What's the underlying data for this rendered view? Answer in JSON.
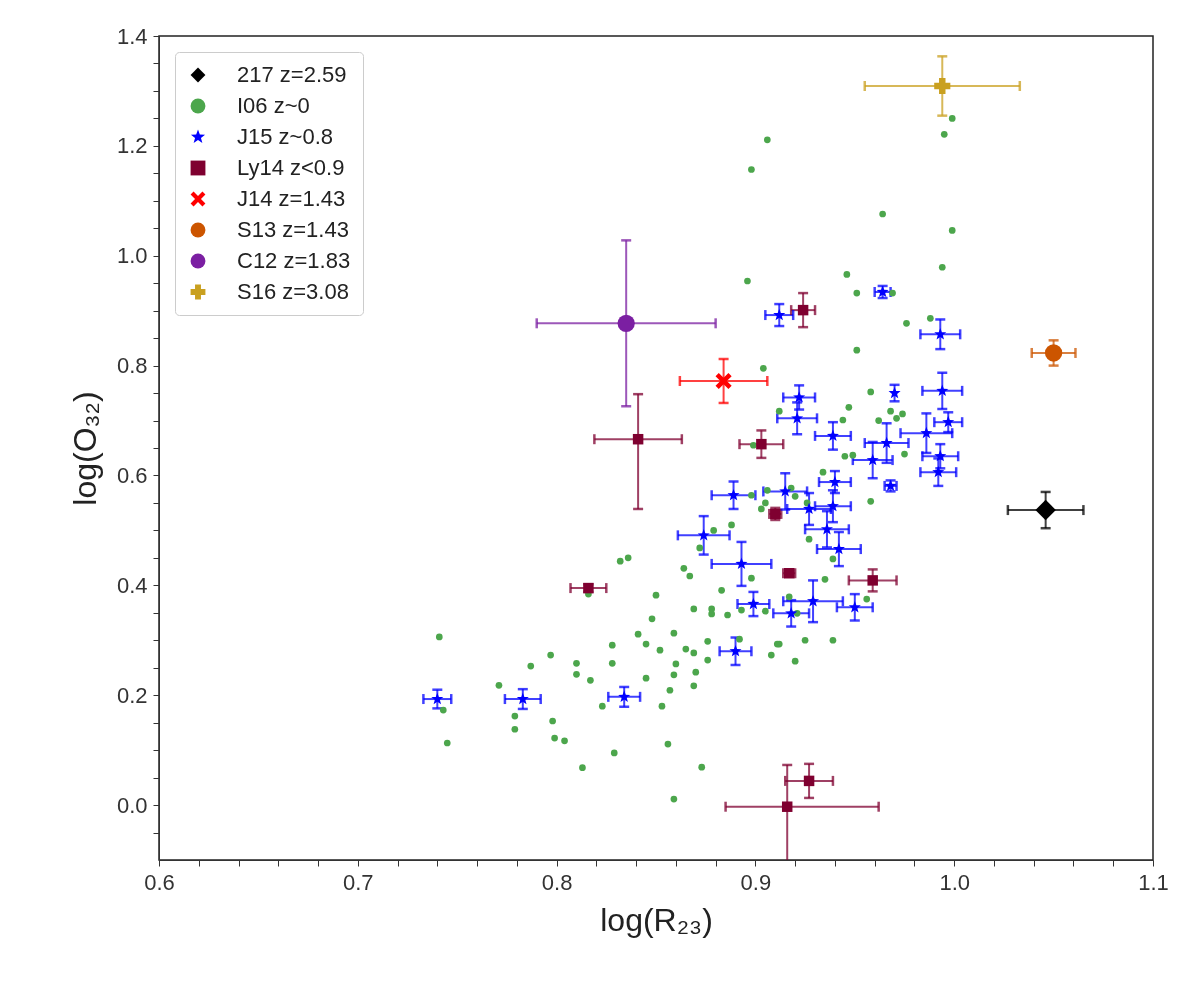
{
  "chart_data": {
    "type": "scatter",
    "xlabel": "log(R₂₃)",
    "ylabel": "log(O₃₂)",
    "xlim": [
      0.6,
      1.1
    ],
    "ylim": [
      -0.1,
      1.4
    ],
    "xticks": [
      0.6,
      {
        "value": 0.62,
        "label": null
      },
      {
        "value": 0.64,
        "label": null
      },
      {
        "value": 0.66,
        "label": null
      },
      {
        "value": 0.68,
        "label": null
      },
      0.7,
      {
        "value": 0.72,
        "label": null
      },
      {
        "value": 0.74,
        "label": null
      },
      {
        "value": 0.76,
        "label": null
      },
      {
        "value": 0.78,
        "label": null
      },
      0.8,
      {
        "value": 0.82,
        "label": null
      },
      {
        "value": 0.84,
        "label": null
      },
      {
        "value": 0.86,
        "label": null
      },
      {
        "value": 0.88,
        "label": null
      },
      0.9,
      {
        "value": 0.92,
        "label": null
      },
      {
        "value": 0.94,
        "label": null
      },
      {
        "value": 0.96,
        "label": null
      },
      {
        "value": 0.98,
        "label": null
      },
      {
        "value": 1,
        "label": "1.0"
      },
      {
        "value": 1.02,
        "label": null
      },
      {
        "value": 1.04,
        "label": null
      },
      {
        "value": 1.06,
        "label": null
      },
      {
        "value": 1.08,
        "label": null
      },
      1.1
    ],
    "yticks": [
      {
        "value": -0.05,
        "label": null
      },
      {
        "value": 0,
        "label": "0.0"
      },
      {
        "value": 0.05,
        "label": null
      },
      {
        "value": 0.1,
        "label": null
      },
      {
        "value": 0.15,
        "label": null
      },
      0.2,
      {
        "value": 0.25,
        "label": null
      },
      {
        "value": 0.3,
        "label": null
      },
      {
        "value": 0.35,
        "label": null
      },
      0.4,
      {
        "value": 0.45,
        "label": null
      },
      {
        "value": 0.5,
        "label": null
      },
      {
        "value": 0.55,
        "label": null
      },
      0.6,
      {
        "value": 0.65,
        "label": null
      },
      {
        "value": 0.7,
        "label": null
      },
      {
        "value": 0.75,
        "label": null
      },
      0.8,
      {
        "value": 0.85,
        "label": null
      },
      {
        "value": 0.9,
        "label": null
      },
      {
        "value": 0.95,
        "label": null
      },
      {
        "value": 1,
        "label": "1.0"
      },
      {
        "value": 1.05,
        "label": null
      },
      {
        "value": 1.1,
        "label": null
      },
      {
        "value": 1.15,
        "label": null
      },
      1.2,
      {
        "value": 1.25,
        "label": null
      },
      {
        "value": 1.3,
        "label": null
      },
      {
        "value": 1.35,
        "label": null
      },
      1.4
    ],
    "grid": false,
    "legend": "top left",
    "series": [
      {
        "name": "217 z=2.59",
        "color": "#000000",
        "marker": "diamond",
        "x": [
          1.046
        ],
        "values": [
          0.537
        ],
        "xerrors": [
          0.019
        ],
        "errors": [
          0.033
        ]
      },
      {
        "name": "I06 z~0",
        "color": "#4ca64c",
        "marker": "circle",
        "x": [
          0.906,
          0.898,
          0.999,
          0.995,
          0.964,
          0.999,
          0.994,
          0.946,
          0.951,
          0.969,
          0.976,
          0.988,
          0.951,
          0.958,
          0.947,
          0.944,
          0.962,
          0.968,
          0.971,
          0.974,
          0.975,
          0.896,
          0.904,
          0.912,
          0.958,
          0.934,
          0.918,
          0.92,
          0.926,
          0.927,
          0.939,
          0.935,
          0.917,
          0.956,
          0.921,
          0.925,
          0.939,
          0.92,
          0.912,
          0.945,
          0.949,
          0.741,
          0.743,
          0.745,
          0.771,
          0.779,
          0.779,
          0.787,
          0.797,
          0.798,
          0.799,
          0.804,
          0.813,
          0.81,
          0.81,
          0.817,
          0.816,
          0.823,
          0.828,
          0.828,
          0.829,
          0.832,
          0.836,
          0.841,
          0.845,
          0.845,
          0.848,
          0.85,
          0.852,
          0.853,
          0.856,
          0.859,
          0.857,
          0.859,
          0.859,
          0.86,
          0.864,
          0.867,
          0.865,
          0.869,
          0.87,
          0.869,
          0.873,
          0.869,
          0.876,
          0.876,
          0.878,
          0.878,
          0.879,
          0.872,
          0.883,
          0.886,
          0.888,
          0.892,
          0.893,
          0.898,
          0.898,
          0.903,
          0.905,
          0.906,
          0.905,
          0.908,
          0.911,
          0.899
        ],
        "values": [
          1.211,
          1.157,
          1.25,
          1.221,
          1.076,
          1.046,
          0.979,
          0.966,
          0.932,
          0.932,
          0.877,
          0.886,
          0.828,
          0.752,
          0.724,
          0.701,
          0.7,
          0.717,
          0.704,
          0.712,
          0.639,
          0.954,
          0.795,
          0.717,
          0.553,
          0.606,
          0.577,
          0.562,
          0.55,
          0.484,
          0.448,
          0.411,
          0.379,
          0.375,
          0.349,
          0.3,
          0.3,
          0.262,
          0.293,
          0.635,
          0.637,
          0.306,
          0.173,
          0.113,
          0.218,
          0.162,
          0.138,
          0.253,
          0.273,
          0.153,
          0.122,
          0.117,
          0.068,
          0.258,
          0.238,
          0.227,
          0.384,
          0.18,
          0.258,
          0.291,
          0.095,
          0.444,
          0.45,
          0.311,
          0.293,
          0.231,
          0.339,
          0.382,
          0.282,
          0.18,
          0.111,
          0.011,
          0.209,
          0.313,
          0.237,
          0.257,
          0.431,
          0.417,
          0.284,
          0.217,
          0.242,
          0.277,
          0.069,
          0.357,
          0.264,
          0.298,
          0.357,
          0.348,
          0.5,
          0.468,
          0.391,
          0.346,
          0.51,
          0.302,
          0.355,
          0.413,
          0.564,
          0.539,
          0.55,
          0.573,
          0.353,
          0.273,
          0.293,
          0.655
        ]
      },
      {
        "name": "J15 z~0.8",
        "color": "#0000ff",
        "marker": "star",
        "x": [
          0.74,
          0.783,
          0.834,
          0.89,
          0.874,
          0.893,
          0.889,
          0.915,
          0.899,
          0.918,
          0.929,
          0.95,
          0.942,
          0.936,
          0.927,
          0.939,
          0.94,
          0.968,
          0.959,
          0.966,
          0.993,
          0.992,
          0.922,
          0.921,
          0.939,
          0.986,
          0.997,
          0.994,
          0.993,
          0.97,
          0.964,
          0.912
        ],
        "values": [
          0.193,
          0.193,
          0.197,
          0.28,
          0.491,
          0.439,
          0.564,
          0.571,
          0.366,
          0.349,
          0.371,
          0.36,
          0.466,
          0.502,
          0.539,
          0.544,
          0.588,
          0.581,
          0.628,
          0.659,
          0.635,
          0.606,
          0.742,
          0.704,
          0.672,
          0.677,
          0.697,
          0.754,
          0.857,
          0.75,
          0.934,
          0.892
        ],
        "xerrors": [
          0.007,
          0.009,
          0.008,
          0.008,
          0.013,
          0.015,
          0.011,
          0.011,
          0.008,
          0.009,
          0.015,
          0.009,
          0.011,
          0.011,
          0.011,
          0.009,
          0.008,
          0.003,
          0.01,
          0.011,
          0.009,
          0.009,
          0.008,
          0.01,
          0.009,
          0.013,
          0.007,
          0.01,
          0.01,
          null,
          0.004,
          0.007
        ],
        "errors": [
          0.017,
          0.018,
          0.018,
          0.025,
          0.035,
          0.04,
          0.025,
          0.033,
          0.022,
          0.024,
          0.038,
          0.024,
          0.031,
          0.033,
          0.029,
          0.029,
          0.02,
          0.01,
          0.033,
          0.036,
          0.022,
          0.025,
          0.022,
          0.029,
          0.025,
          0.036,
          0.018,
          0.033,
          0.027,
          0.015,
          0.011,
          0.02
        ]
      },
      {
        "name": "Ly14 z<0.9",
        "color": "#7f0030",
        "marker": "square",
        "x": [
          0.841,
          0.903,
          0.924,
          0.816,
          0.91,
          0.917,
          0.959,
          0.927,
          0.916
        ],
        "values": [
          0.666,
          0.657,
          0.901,
          0.395,
          0.53,
          0.422,
          0.409,
          0.044,
          -0.003
        ],
        "xerrors": [
          0.022,
          0.011,
          0.006,
          0.009,
          0.003,
          0.003,
          0.012,
          0.012,
          [
            0.885,
            0.962
          ]
        ],
        "errors": [
          [
            0.539,
            0.748
          ],
          0.025,
          0.031,
          0.007,
          0.011,
          0.005,
          0.02,
          0.031,
          [
            -0.1,
            0.073
          ]
        ]
      },
      {
        "name": "J14 z=1.43",
        "color": "#ff0000",
        "marker": "cross",
        "x": [
          0.884
        ],
        "values": [
          0.772
        ],
        "xerrors": [
          0.022
        ],
        "errors": [
          0.04
        ]
      },
      {
        "name": "S13 z=1.43",
        "color": "#cc5500",
        "x": [
          1.05
        ],
        "values": [
          0.823
        ],
        "xerrors": [
          0.011
        ],
        "errors": [
          0.023
        ]
      },
      {
        "name": "C12 z=1.83",
        "color": "#7b1fa2",
        "x": [
          0.835
        ],
        "values": [
          0.877
        ],
        "xerrors": [
          0.045
        ],
        "errors": [
          0.151
        ]
      },
      {
        "name": "S16 z=3.08",
        "color": "#c9a020",
        "marker": "plus",
        "x": [
          0.994
        ],
        "values": [
          1.309
        ],
        "xerrors": [
          0.039
        ],
        "errors": [
          0.054
        ]
      }
    ]
  }
}
